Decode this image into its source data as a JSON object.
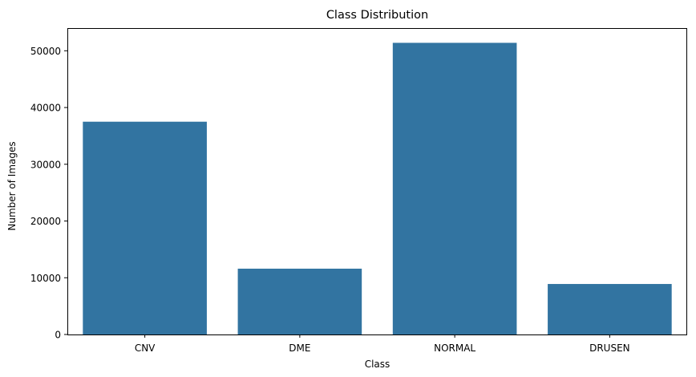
{
  "chart_data": {
    "type": "bar",
    "title": "Class Distribution",
    "xlabel": "Class",
    "ylabel": "Number of Images",
    "categories": [
      "CNV",
      "DME",
      "NORMAL",
      "DRUSEN"
    ],
    "values": [
      37500,
      11600,
      51400,
      8900
    ],
    "ylim": [
      0,
      54000
    ],
    "yticks": [
      0,
      10000,
      20000,
      30000,
      40000,
      50000
    ],
    "grid": false,
    "bar_color": "#3274a1"
  }
}
